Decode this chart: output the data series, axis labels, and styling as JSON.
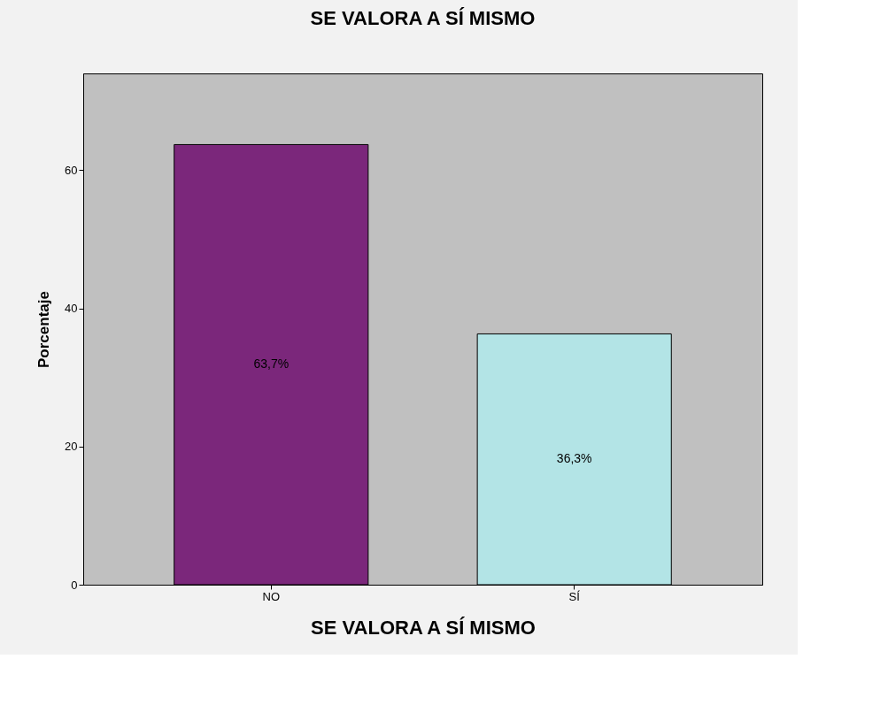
{
  "chart_data": {
    "type": "bar",
    "title": "SE VALORA A SÍ MISMO",
    "xlabel": "SE VALORA A SÍ MISMO",
    "ylabel": "Porcentaje",
    "categories": [
      "NO",
      "SÍ"
    ],
    "values": [
      63.7,
      36.3
    ],
    "colors": [
      "#7b277b",
      "#b3e4e6"
    ],
    "value_labels": [
      "63,7%",
      "36,3%"
    ],
    "ylim": [
      0,
      74
    ],
    "yticks": [
      0,
      20,
      40,
      60
    ],
    "grid": false,
    "legend": false
  }
}
